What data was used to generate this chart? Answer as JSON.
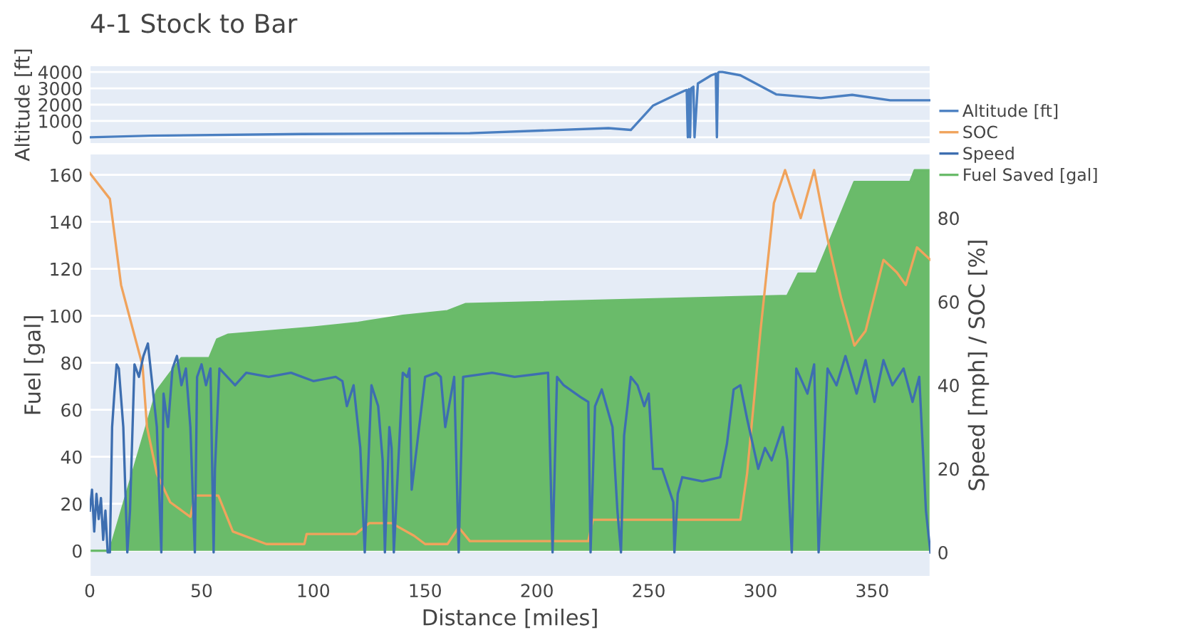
{
  "chart_data": [
    {
      "type": "line",
      "title": "4-1 Stock to Bar",
      "ylabel": "Altitude [ft]",
      "xlim": [
        0,
        376
      ],
      "ylim": [
        -400,
        4400
      ],
      "yticks": [
        0,
        1000,
        2000,
        3000,
        4000
      ],
      "tick_labels": "y",
      "grid": "y",
      "legend": "right",
      "series": [
        {
          "name": "Altitude [ft]",
          "color": "#4a7fc1",
          "x": [
            0,
            27,
            95,
            170,
            232,
            242,
            252,
            262,
            266,
            267,
            267.5,
            268,
            268.5,
            269,
            270,
            270.5,
            272,
            278,
            280,
            280.5,
            281,
            281.5,
            283,
            291,
            307,
            327,
            341,
            358,
            376
          ],
          "values": [
            0,
            100,
            200,
            250,
            560,
            450,
            1950,
            2600,
            2850,
            2900,
            0,
            2950,
            0,
            3000,
            3100,
            0,
            3300,
            3800,
            3900,
            0,
            3950,
            4000,
            4000,
            3800,
            2630,
            2400,
            2600,
            2270,
            2270
          ]
        }
      ]
    },
    {
      "type": "area",
      "xlabel": "Distance [miles]",
      "ylabel": "Fuel [gal]",
      "y2label": "Speed [mph] / SOC [%]",
      "xlim": [
        0,
        376
      ],
      "xticks": [
        0,
        50,
        100,
        150,
        200,
        250,
        300,
        350
      ],
      "ylim": [
        -11,
        169
      ],
      "yticks": [
        0,
        20,
        40,
        60,
        80,
        100,
        120,
        140,
        160
      ],
      "y2lim": [
        -5.8,
        95.4
      ],
      "y2ticks": [
        0,
        20,
        40,
        60,
        80
      ],
      "grid": "y",
      "legend": "right",
      "series": [
        {
          "name": "SOC",
          "type": "line",
          "axis": "y2",
          "color": "#f0a35c",
          "x": [
            0,
            9,
            14,
            23.6,
            25.6,
            30,
            36,
            45,
            47,
            57.5,
            64,
            79,
            96,
            97,
            119,
            125,
            135,
            145,
            150,
            160,
            165,
            170,
            223,
            225,
            291,
            294,
            300,
            306,
            311,
            318,
            324,
            330,
            336,
            342,
            347,
            355,
            361,
            365,
            370,
            376
          ],
          "values": [
            90.8,
            84.6,
            64,
            44.7,
            30,
            18.8,
            12,
            8.5,
            13.6,
            13.6,
            5,
            2,
            2,
            4.4,
            4.4,
            7,
            7,
            4,
            2,
            2,
            6,
            2.7,
            2.7,
            7.8,
            7.8,
            18.8,
            53,
            83.6,
            91.5,
            80,
            91.5,
            75,
            61,
            49.5,
            53,
            70,
            67,
            64,
            73,
            70
          ]
        },
        {
          "name": "Speed",
          "type": "line",
          "axis": "y2",
          "color": "#3d6eb0",
          "x": [
            0,
            1,
            2,
            3,
            4,
            5,
            6,
            7,
            8,
            9,
            10,
            11,
            12,
            13,
            15,
            16.8,
            18,
            20,
            22,
            24,
            26,
            28,
            30,
            32,
            33,
            35,
            37,
            39,
            41,
            43,
            45,
            47,
            48,
            50,
            52,
            54,
            55.4,
            56,
            58,
            65,
            70,
            80,
            90,
            100,
            110,
            113,
            115,
            118,
            120,
            121,
            123,
            126,
            129,
            131,
            132,
            134,
            135,
            136,
            140,
            142,
            143,
            144,
            150,
            155,
            157,
            159,
            163,
            165,
            167,
            180,
            190,
            205,
            207,
            209,
            212,
            220,
            223,
            224,
            226,
            229,
            233.8,
            236,
            237.6,
            239,
            242,
            245,
            248,
            250,
            252,
            256,
            261,
            261.5,
            263,
            265,
            274,
            282,
            285,
            288,
            291,
            294,
            299,
            302,
            305,
            310,
            312,
            314,
            316,
            321,
            324,
            326,
            330,
            334,
            338,
            343,
            347,
            351,
            355,
            359,
            364,
            368,
            371,
            374,
            376
          ],
          "values": [
            10,
            15,
            5,
            14,
            8,
            13,
            3,
            10,
            0,
            0,
            30,
            38,
            45,
            44,
            30,
            0,
            10,
            45,
            42,
            47,
            50,
            40,
            30,
            0,
            38,
            30,
            44,
            47,
            40,
            44,
            30,
            0,
            42,
            45,
            40,
            44,
            0,
            20,
            44,
            40,
            43,
            42,
            43,
            41,
            42,
            41,
            35,
            40,
            30,
            25,
            0,
            40,
            35,
            22,
            0,
            30,
            25,
            0,
            43,
            42,
            44,
            15,
            42,
            43,
            42,
            30,
            42,
            0,
            42,
            43,
            42,
            43,
            0,
            42,
            40,
            37,
            36,
            0,
            35,
            39,
            30,
            10,
            0,
            28,
            42,
            40,
            35,
            38,
            20,
            20,
            12,
            0,
            14,
            18,
            17,
            18,
            26,
            39,
            40,
            32,
            20,
            25,
            22,
            30,
            22,
            0,
            44,
            38,
            45,
            0,
            44,
            40,
            47,
            38,
            46,
            36,
            46,
            40,
            44,
            36,
            42,
            10,
            0
          ]
        },
        {
          "name": "Fuel Saved [gal]",
          "type": "area",
          "color": "#6abb6a",
          "x": [
            0,
            9,
            30,
            41,
            53.5,
            57,
            62,
            100,
            120,
            140,
            160,
            168,
            312,
            317,
            325,
            342,
            367,
            369,
            376
          ],
          "values": [
            0,
            0,
            68,
            82,
            82,
            90,
            92,
            95,
            97,
            100,
            102,
            105,
            108.5,
            118,
            118,
            157,
            157,
            162,
            162
          ]
        }
      ]
    }
  ]
}
